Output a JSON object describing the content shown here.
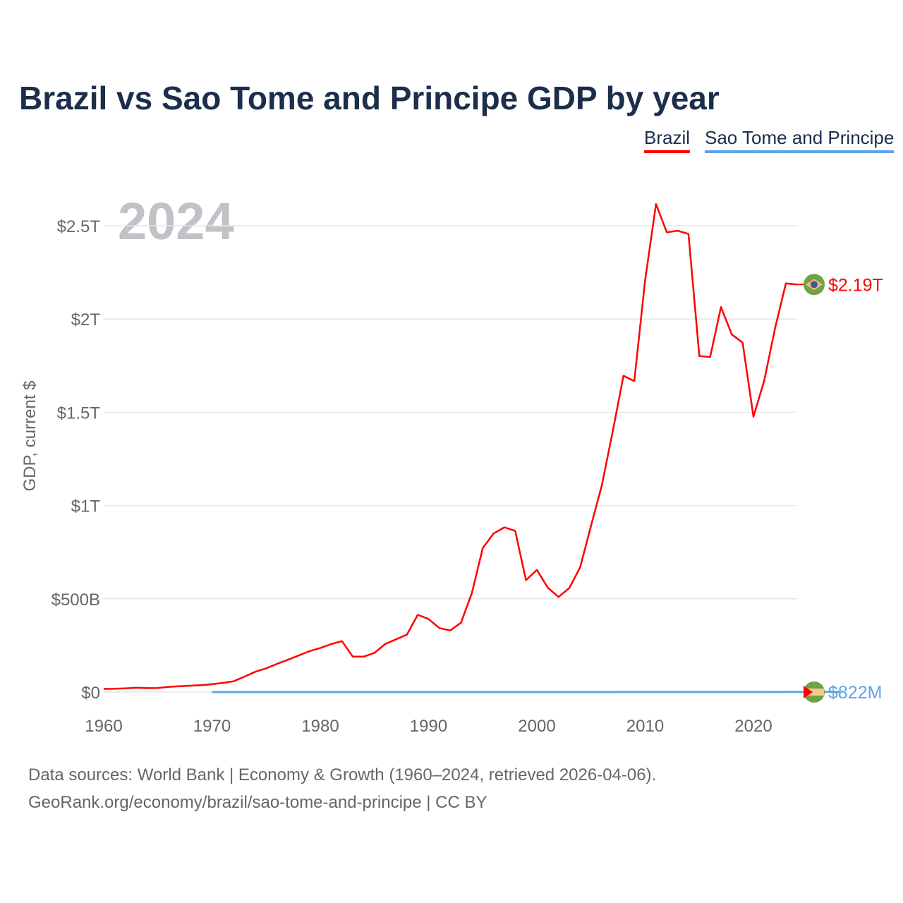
{
  "title": "Brazil vs Sao Tome and Principe GDP by year",
  "legend": {
    "brazil": "Brazil",
    "stp": "Sao Tome and Principe"
  },
  "year_label": "2024",
  "end_labels": {
    "brazil": "$2.19T",
    "stp": "$822M"
  },
  "flags": {
    "brazil": "brazil-flag-icon",
    "stp": "sao-tome-flag-icon"
  },
  "colors": {
    "brazil": "#ff0000",
    "stp": "#5fa4e8"
  },
  "source_line1": "Data sources: World Bank | Economy & Growth (1960–2024, retrieved 2026-04-06).",
  "source_line2": "GeoRank.org/economy/brazil/sao-tome-and-principe | CC BY",
  "chart_data": {
    "type": "line",
    "title": "Brazil vs Sao Tome and Principe GDP by year",
    "xlabel": "",
    "ylabel": "GDP, current $",
    "xlim": [
      1960,
      2024
    ],
    "ylim": [
      0,
      2.65
    ],
    "yticks": [
      0,
      0.5,
      1,
      1.5,
      2,
      2.5
    ],
    "ytick_labels": [
      "$0",
      "$500B",
      "$1T",
      "$1.5T",
      "$2T",
      "$2.5T"
    ],
    "xticks": [
      1960,
      1970,
      1980,
      1990,
      2000,
      2010,
      2020
    ],
    "xtick_labels": [
      "1960",
      "1970",
      "1980",
      "1990",
      "2000",
      "2010",
      "2020"
    ],
    "grid": true,
    "legend_position": "top-right",
    "units": "trillion USD",
    "series": [
      {
        "name": "Brazil",
        "start_year": 1960,
        "values": [
          0.017,
          0.018,
          0.02,
          0.023,
          0.021,
          0.022,
          0.028,
          0.031,
          0.034,
          0.037,
          0.042,
          0.049,
          0.058,
          0.083,
          0.109,
          0.127,
          0.151,
          0.173,
          0.196,
          0.219,
          0.236,
          0.257,
          0.273,
          0.19,
          0.19,
          0.21,
          0.258,
          0.283,
          0.308,
          0.414,
          0.392,
          0.343,
          0.33,
          0.372,
          0.531,
          0.772,
          0.85,
          0.883,
          0.864,
          0.6,
          0.655,
          0.56,
          0.51,
          0.558,
          0.669,
          0.892,
          1.108,
          1.397,
          1.696,
          1.667,
          2.209,
          2.616,
          2.465,
          2.473,
          2.456,
          1.802,
          1.796,
          2.064,
          1.917,
          1.873,
          1.476,
          1.67,
          1.952,
          2.191,
          2.185
        ]
      },
      {
        "name": "Sao Tome and Principe",
        "start_year": 1970,
        "values": [
          5e-05,
          5e-05,
          6e-05,
          8e-05,
          0.0001,
          0.0001,
          0.0001,
          0.0001,
          0.0001,
          0.0001,
          0.0001,
          0.0001,
          0.0001,
          0.0001,
          0.0001,
          0.0001,
          0.0001,
          0.0001,
          0.0001,
          0.0001,
          0.0001,
          0.0001,
          0.0001,
          0.0001,
          0.0001,
          0.0001,
          0.0001,
          0.0001,
          0.0001,
          0.0001,
          0.0001,
          0.0001,
          0.0001,
          0.0001,
          0.0001,
          0.00013,
          0.00014,
          0.00016,
          0.00019,
          0.0002,
          0.0002,
          0.00025,
          0.00028,
          0.0003,
          0.00033,
          0.00035,
          0.00036,
          0.00038,
          0.00042,
          0.00043,
          0.00047,
          0.00054,
          0.00055,
          0.00061,
          0.00066,
          0.00068,
          0.00071,
          0.00073,
          0.00082
        ]
      }
    ]
  }
}
